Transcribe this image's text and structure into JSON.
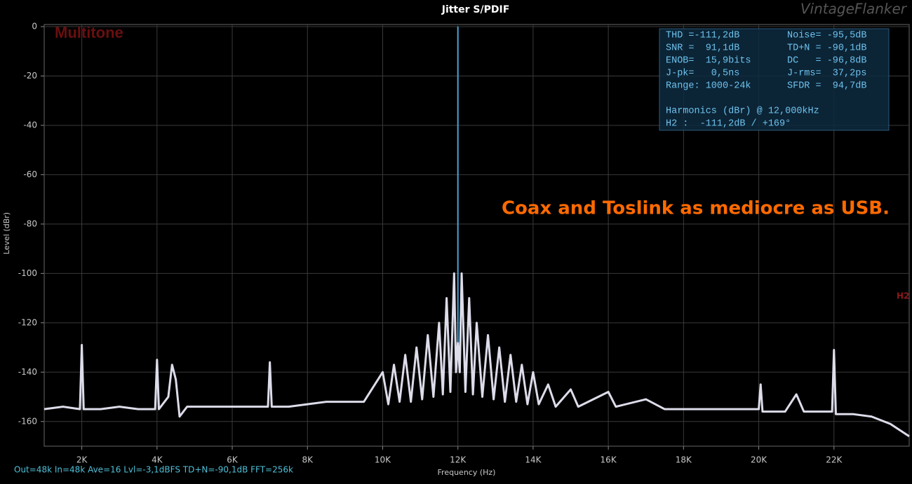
{
  "chart_data": {
    "type": "line",
    "title": "Jitter S/PDIF",
    "watermark": "VintageFlanker",
    "label": "Multitone",
    "annotation": "Coax and Toslink as mediocre as USB.",
    "marker": "H2",
    "xlabel": "Frequency (Hz)",
    "ylabel": "Level (dBr)",
    "status": "Out=48k In=48k Ave=16 Lvl=-3,1dBFS TD+N=-90,1dB FFT=256k",
    "info": [
      [
        "THD =-111,2dB",
        "Noise= -95,5dB"
      ],
      [
        "SNR =  91,1dB",
        "TD+N = -90,1dB"
      ],
      [
        "ENOB=  15,9bits",
        "DC   = -96,8dB"
      ],
      [
        "J-pk=   0,5ns",
        "J-rms=  37,2ps"
      ],
      [
        "Range: 1000-24k",
        "SFDR =  94,7dB"
      ]
    ],
    "harmonics": [
      "Harmonics (dBr) @ 12,000kHz",
      "H2 :  -111,2dB / +169°"
    ],
    "xlim": [
      1000,
      24000
    ],
    "ylim": [
      -170,
      0
    ],
    "xticks": [
      {
        "value": 2000,
        "label": "2K"
      },
      {
        "value": 4000,
        "label": "4K"
      },
      {
        "value": 6000,
        "label": "6K"
      },
      {
        "value": 8000,
        "label": "8K"
      },
      {
        "value": 10000,
        "label": "10K"
      },
      {
        "value": 12000,
        "label": "12K"
      },
      {
        "value": 14000,
        "label": "14K"
      },
      {
        "value": 16000,
        "label": "16K"
      },
      {
        "value": 18000,
        "label": "18K"
      },
      {
        "value": 20000,
        "label": "20K"
      },
      {
        "value": 22000,
        "label": "22K"
      }
    ],
    "yticks": [
      0,
      -20,
      -40,
      -60,
      -80,
      -100,
      -120,
      -140,
      -160
    ],
    "grid": true,
    "series": [
      {
        "color": "#dcdcea",
        "x": [
          1000,
          1500,
          1950,
          2000,
          2050,
          2500,
          3000,
          3500,
          3950,
          4000,
          4050,
          4300,
          4400,
          4500,
          4600,
          4800,
          5500,
          6000,
          6500,
          6950,
          7000,
          7050,
          7500,
          8000,
          8500,
          9000,
          9500,
          10000,
          10150,
          10300,
          10450,
          10600,
          10750,
          10900,
          11050,
          11200,
          11350,
          11500,
          11600,
          11700,
          11800,
          11900,
          11950,
          12000,
          12050,
          12100,
          12200,
          12300,
          12400,
          12500,
          12650,
          12800,
          12950,
          13100,
          13250,
          13400,
          13550,
          13700,
          13850,
          14000,
          14150,
          14400,
          14600,
          15000,
          15200,
          16000,
          16200,
          17000,
          17500,
          18000,
          19000,
          20000,
          20050,
          20100,
          20700,
          21000,
          21200,
          21950,
          22000,
          22050,
          22500,
          23000,
          23500,
          24000
        ],
        "values": [
          -155,
          -154,
          -155,
          -129,
          -155,
          -155,
          -154,
          -155,
          -155,
          -135,
          -155,
          -150,
          -137,
          -143,
          -158,
          -154,
          -154,
          -154,
          -154,
          -154,
          -136,
          -154,
          -154,
          -153,
          -152,
          -152,
          -152,
          -140,
          -153,
          -137,
          -152,
          -133,
          -152,
          -130,
          -151,
          -125,
          -150,
          -120,
          -149,
          -110,
          -148,
          -100,
          -140,
          -128,
          -140,
          -100,
          -148,
          -110,
          -149,
          -120,
          -150,
          -125,
          -151,
          -130,
          -152,
          -133,
          -152,
          -137,
          -153,
          -140,
          -153,
          -145,
          -154,
          -147,
          -154,
          -148,
          -154,
          -151,
          -155,
          -155,
          -155,
          -155,
          -145,
          -156,
          -156,
          -149,
          -156,
          -156,
          -131,
          -157,
          -157,
          -158,
          -161,
          -166
        ]
      },
      {
        "color": "#4aa3d8",
        "x": [
          12000,
          12000
        ],
        "values": [
          -128,
          0
        ]
      }
    ]
  }
}
